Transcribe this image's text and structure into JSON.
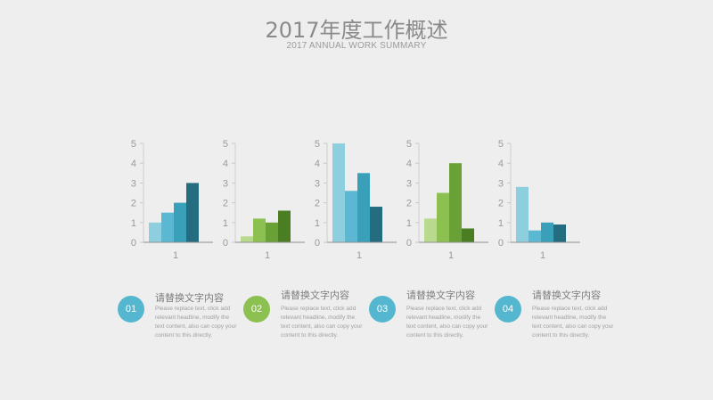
{
  "header": {
    "title": "2017年度工作概述",
    "subtitle": "2017 ANNUAL WORK SUMMARY"
  },
  "colors": {
    "blue": [
      "#8ecfdf",
      "#5ab8d2",
      "#3a9fb9",
      "#246c80"
    ],
    "green": [
      "#b9d98f",
      "#8cc152",
      "#6aa136",
      "#4b7d23"
    ],
    "badge_blue": "#55b7cf",
    "badge_green": "#8cc152"
  },
  "chart_data": [
    {
      "type": "bar",
      "categories": [
        "1"
      ],
      "ylim": [
        0,
        5
      ],
      "yticks": [
        0,
        1,
        2,
        3,
        4,
        5
      ],
      "palette": "blue",
      "series": [
        {
          "values": [
            1
          ]
        },
        {
          "values": [
            1.5
          ]
        },
        {
          "values": [
            2
          ]
        },
        {
          "values": [
            3
          ]
        }
      ]
    },
    {
      "type": "bar",
      "categories": [
        "1"
      ],
      "ylim": [
        0,
        5
      ],
      "yticks": [
        0,
        1,
        2,
        3,
        4,
        5
      ],
      "palette": "green",
      "series": [
        {
          "values": [
            0.3
          ]
        },
        {
          "values": [
            1.2
          ]
        },
        {
          "values": [
            1
          ]
        },
        {
          "values": [
            1.6
          ]
        }
      ]
    },
    {
      "type": "bar",
      "categories": [
        "1"
      ],
      "ylim": [
        0,
        5
      ],
      "yticks": [
        0,
        1,
        2,
        3,
        4,
        5
      ],
      "palette": "blue",
      "series": [
        {
          "values": [
            5
          ]
        },
        {
          "values": [
            2.6
          ]
        },
        {
          "values": [
            3.5
          ]
        },
        {
          "values": [
            1.8
          ]
        }
      ]
    },
    {
      "type": "bar",
      "categories": [
        "1"
      ],
      "ylim": [
        0,
        5
      ],
      "yticks": [
        0,
        1,
        2,
        3,
        4,
        5
      ],
      "palette": "green",
      "series": [
        {
          "values": [
            1.2
          ]
        },
        {
          "values": [
            2.5
          ]
        },
        {
          "values": [
            4
          ]
        },
        {
          "values": [
            0.7
          ]
        }
      ]
    },
    {
      "type": "bar",
      "categories": [
        "1"
      ],
      "ylim": [
        0,
        5
      ],
      "yticks": [
        0,
        1,
        2,
        3,
        4,
        5
      ],
      "palette": "blue",
      "series": [
        {
          "values": [
            2.8
          ]
        },
        {
          "values": [
            0.6
          ]
        },
        {
          "values": [
            1
          ]
        },
        {
          "values": [
            0.9
          ]
        }
      ]
    }
  ],
  "items": [
    {
      "number": "01",
      "title": "请替换文字内容",
      "color": "#55b7cf",
      "desc": "Please replace text, click add relevant headline, modify the text content, also can copy your content to this directly."
    },
    {
      "number": "02",
      "title": "请替换文字内容",
      "color": "#8cc152",
      "desc": "Please replace text, click add relevant headline, modify the text content, also can copy your content to this directly."
    },
    {
      "number": "03",
      "title": "请替换文字内容",
      "color": "#55b7cf",
      "desc": "Please replace text, click add relevant headline, modify the text content, also can copy your content to this directly."
    },
    {
      "number": "04",
      "title": "请替换文字内容",
      "color": "#55b7cf",
      "desc": "Please replace text, click add relevant headline, modify the text content, also can copy your content to this directly."
    }
  ]
}
